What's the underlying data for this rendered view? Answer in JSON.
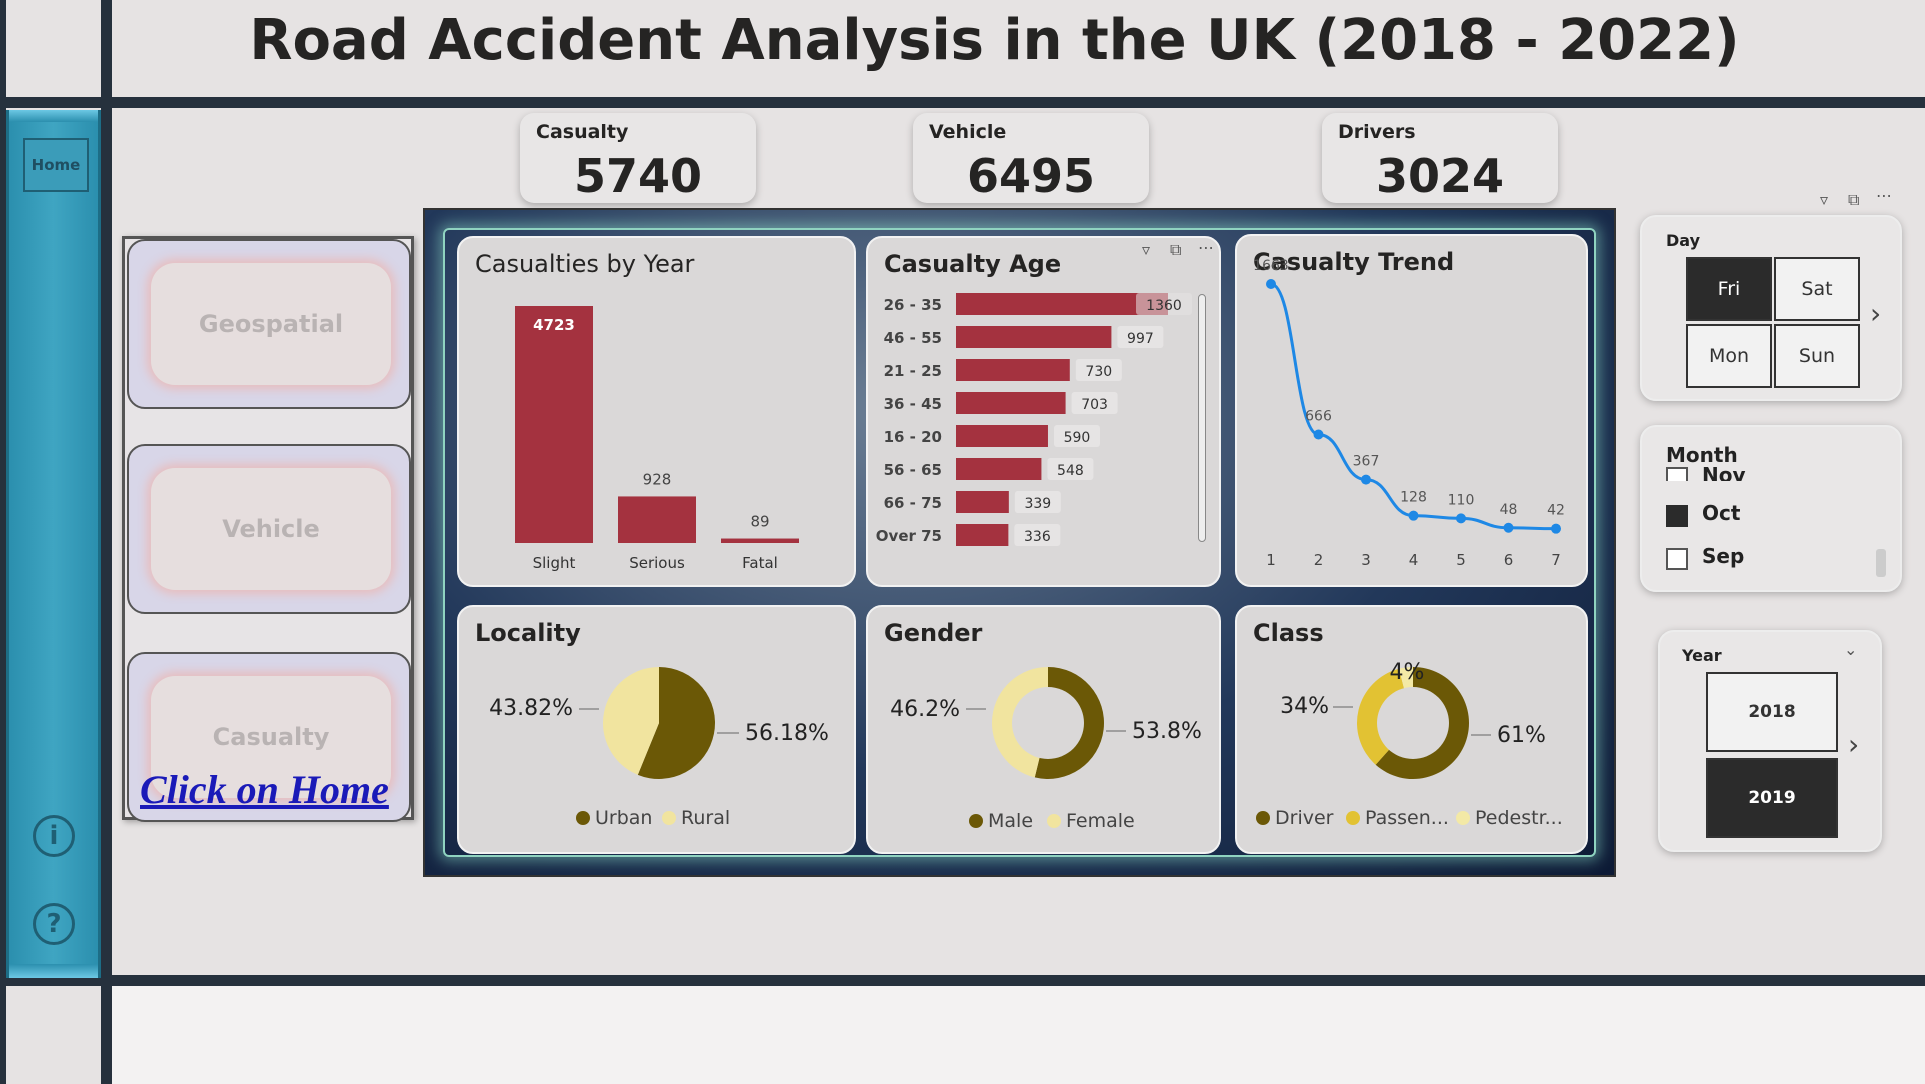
{
  "header": {
    "title": "Road Accident Analysis in the UK (2018 - 2022)"
  },
  "sidebar": {
    "home_label": "Home",
    "info_icon": "info-icon",
    "help_icon": "help-icon"
  },
  "nav": {
    "items": [
      {
        "label": "Geospatial"
      },
      {
        "label": "Vehicle"
      },
      {
        "label": "Casualty"
      }
    ],
    "click_home": "Click on Home"
  },
  "kpis": [
    {
      "label": "Casualty",
      "value": "5740"
    },
    {
      "label": "Vehicle",
      "value": "6495"
    },
    {
      "label": "Drivers",
      "value": "3024"
    }
  ],
  "cards": {
    "by_year": {
      "title": "Casualties by Year"
    },
    "age": {
      "title": "Casualty Age"
    },
    "trend": {
      "title": "Casualty Trend"
    },
    "locality": {
      "title": "Locality"
    },
    "gender": {
      "title": "Gender"
    },
    "class": {
      "title": "Class"
    }
  },
  "slicers": {
    "day": {
      "title": "Day",
      "options": [
        "Fri",
        "Sat",
        "Mon",
        "Sun"
      ],
      "selected": "Fri"
    },
    "month": {
      "title": "Month",
      "options": [
        "Nov",
        "Oct",
        "Sep"
      ],
      "selected": "Oct"
    },
    "year": {
      "title": "Year",
      "options": [
        "2018",
        "2019"
      ],
      "selected": "2019"
    }
  },
  "colors": {
    "bar_red": "#a4323f",
    "line_blue": "#1e88e5",
    "olive": "#6b5806",
    "light_yellow": "#f1e49f",
    "gold": "#e2c233",
    "pale_yellow": "#f3e9a6"
  },
  "chart_data": [
    {
      "type": "bar",
      "title": "Casualties by Year",
      "categories": [
        "Slight",
        "Serious",
        "Fatal"
      ],
      "values": [
        4723,
        928,
        89
      ]
    },
    {
      "type": "bar",
      "orientation": "horizontal",
      "title": "Casualty Age",
      "categories": [
        "26 - 35",
        "46 - 55",
        "21 - 25",
        "36 - 45",
        "16 - 20",
        "56 - 65",
        "66 - 75",
        "Over 75"
      ],
      "values": [
        1360,
        997,
        730,
        703,
        590,
        548,
        339,
        336
      ]
    },
    {
      "type": "line",
      "title": "Casualty Trend",
      "x": [
        1,
        2,
        3,
        4,
        5,
        6,
        7
      ],
      "y": [
        1663,
        666,
        367,
        128,
        110,
        48,
        42
      ]
    },
    {
      "type": "pie",
      "title": "Locality",
      "labels": [
        "Urban",
        "Rural"
      ],
      "values": [
        56.18,
        43.82
      ],
      "value_labels": [
        "56.18%",
        "43.82%"
      ]
    },
    {
      "type": "pie",
      "donut": true,
      "title": "Gender",
      "labels": [
        "Male",
        "Female"
      ],
      "values": [
        53.8,
        46.2
      ],
      "value_labels": [
        "53.8%",
        "46.2%"
      ]
    },
    {
      "type": "pie",
      "donut": true,
      "title": "Class",
      "labels": [
        "Driver",
        "Passen...",
        "Pedestr..."
      ],
      "values": [
        61,
        34,
        4
      ],
      "value_labels": [
        "61%",
        "34%",
        "4%"
      ]
    }
  ]
}
